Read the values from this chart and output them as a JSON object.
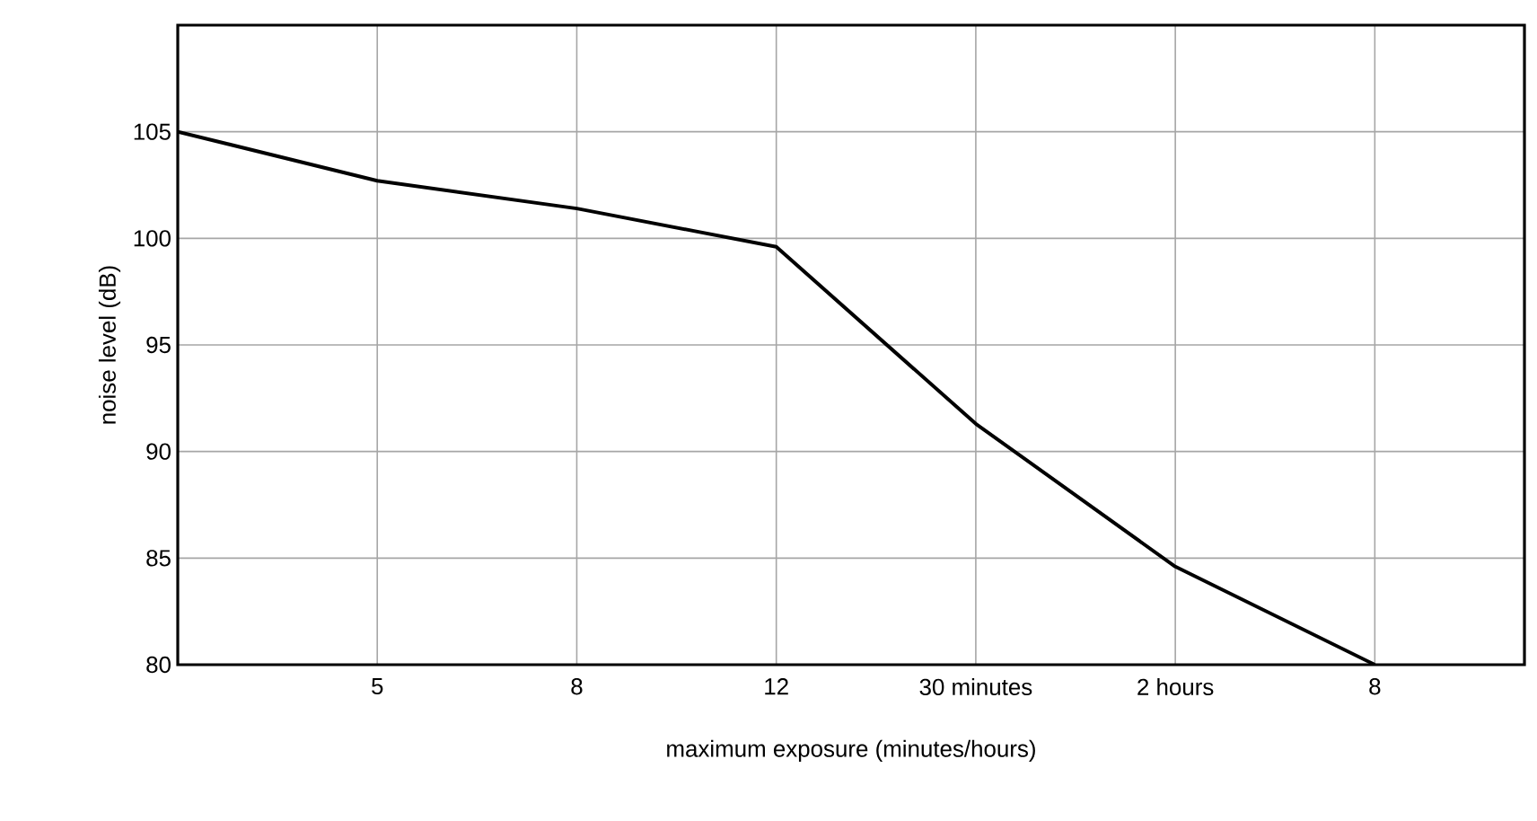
{
  "chart_data": {
    "type": "line",
    "xlabel": "maximum exposure (minutes/hours)",
    "ylabel": "noise level (dB)",
    "categories": [
      null,
      "5",
      "8",
      "12",
      "30 minutes",
      "2 hours",
      "8"
    ],
    "values": [
      105,
      102.7,
      101.4,
      99.6,
      91.3,
      84.6,
      80
    ],
    "color": "#000000",
    "ylim": [
      80,
      110
    ],
    "yticks": [
      80,
      85,
      90,
      95,
      100,
      105
    ],
    "grid": true,
    "marker": "none",
    "line_style": "solid"
  }
}
